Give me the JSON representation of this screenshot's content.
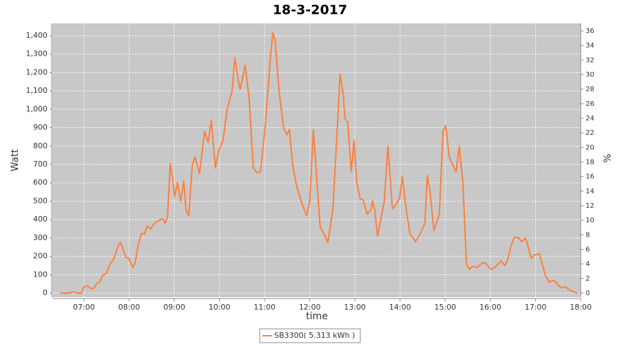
{
  "chart_data": {
    "type": "line",
    "title": "18-3-2017",
    "x_label": "time",
    "y_label": "Watt",
    "y2_label": "%",
    "x": [
      6.48,
      6.66,
      6.76,
      6.86,
      6.94,
      7.0,
      7.08,
      7.17,
      7.23,
      7.29,
      7.35,
      7.41,
      7.5,
      7.58,
      7.67,
      7.76,
      7.81,
      7.85,
      7.93,
      7.99,
      8.08,
      8.13,
      8.19,
      8.27,
      8.34,
      8.4,
      8.48,
      8.56,
      8.65,
      8.74,
      8.8,
      8.85,
      8.91,
      8.95,
      9.01,
      9.07,
      9.14,
      9.21,
      9.26,
      9.32,
      9.4,
      9.46,
      9.56,
      9.67,
      9.75,
      9.82,
      9.91,
      9.99,
      10.08,
      10.17,
      10.28,
      10.34,
      10.42,
      10.46,
      10.57,
      10.66,
      10.75,
      10.83,
      10.91,
      11.01,
      11.13,
      11.18,
      11.23,
      11.32,
      11.42,
      11.49,
      11.55,
      11.62,
      11.7,
      11.81,
      11.93,
      12.0,
      12.08,
      12.16,
      12.23,
      12.34,
      12.4,
      12.51,
      12.61,
      12.67,
      12.74,
      12.78,
      12.84,
      12.92,
      12.98,
      13.04,
      13.12,
      13.18,
      13.27,
      13.35,
      13.39,
      13.44,
      13.5,
      13.58,
      13.65,
      13.73,
      13.83,
      13.91,
      13.99,
      14.05,
      14.11,
      14.22,
      14.29,
      14.34,
      14.44,
      14.55,
      14.6,
      14.66,
      14.75,
      14.87,
      14.95,
      15.01,
      15.09,
      15.18,
      15.24,
      15.31,
      15.39,
      15.47,
      15.53,
      15.6,
      15.71,
      15.82,
      15.89,
      15.97,
      16.03,
      16.12,
      16.23,
      16.32,
      16.38,
      16.46,
      16.53,
      16.63,
      16.69,
      16.78,
      16.84,
      16.9,
      16.96,
      17.01,
      17.08,
      17.16,
      17.21,
      17.3,
      17.39,
      17.47,
      17.51,
      17.57,
      17.66,
      17.74,
      17.79,
      17.85,
      17.92
    ],
    "series": [
      {
        "name": "SB3300( 5.313 kWh )",
        "color": "#ff7f3a",
        "values": [
          0,
          0,
          8,
          0,
          0,
          35,
          40,
          22,
          30,
          55,
          60,
          95,
          110,
          160,
          190,
          260,
          275,
          250,
          195,
          190,
          140,
          160,
          250,
          325,
          320,
          365,
          350,
          380,
          395,
          405,
          380,
          420,
          705,
          640,
          525,
          600,
          500,
          610,
          450,
          420,
          700,
          740,
          650,
          880,
          820,
          940,
          680,
          780,
          830,
          1000,
          1100,
          1280,
          1150,
          1110,
          1240,
          1050,
          680,
          655,
          660,
          900,
          1280,
          1415,
          1380,
          1100,
          900,
          860,
          890,
          700,
          590,
          500,
          420,
          500,
          890,
          600,
          360,
          310,
          275,
          450,
          900,
          1190,
          1080,
          950,
          930,
          660,
          830,
          600,
          510,
          510,
          430,
          450,
          500,
          450,
          310,
          410,
          500,
          800,
          460,
          480,
          520,
          635,
          500,
          320,
          300,
          280,
          320,
          380,
          640,
          560,
          340,
          430,
          880,
          910,
          740,
          690,
          660,
          800,
          600,
          160,
          130,
          145,
          140,
          165,
          165,
          140,
          130,
          145,
          175,
          150,
          180,
          260,
          305,
          300,
          280,
          300,
          250,
          190,
          205,
          210,
          215,
          150,
          100,
          60,
          70,
          55,
          40,
          30,
          35,
          20,
          12,
          8,
          0
        ]
      }
    ],
    "xlim": [
      6.3,
      18
    ],
    "xticks": [
      {
        "value": 7,
        "label": "07:00"
      },
      {
        "value": 8,
        "label": "08:00"
      },
      {
        "value": 9,
        "label": "09:00"
      },
      {
        "value": 10,
        "label": "10:00"
      },
      {
        "value": 11,
        "label": "11:00"
      },
      {
        "value": 12,
        "label": "12:00"
      },
      {
        "value": 13,
        "label": "13:00"
      },
      {
        "value": 14,
        "label": "14:00"
      },
      {
        "value": 15,
        "label": "15:00"
      },
      {
        "value": 16,
        "label": "16:00"
      },
      {
        "value": 17,
        "label": "17:00"
      },
      {
        "value": 18,
        "label": "18:00"
      }
    ],
    "ylim": [
      -22,
      1467
    ],
    "yticks": [
      0,
      100,
      200,
      300,
      400,
      500,
      600,
      700,
      800,
      900,
      {
        "value": 1000,
        "label": "1,000"
      },
      {
        "value": 1100,
        "label": "1,100"
      },
      {
        "value": 1200,
        "label": "1,200"
      },
      {
        "value": 1300,
        "label": "1,300"
      },
      {
        "value": 1400,
        "label": "1,400"
      }
    ],
    "y2lim": [
      -0.57,
      37.04
    ],
    "y2ticks": [
      0,
      2,
      4,
      6,
      8,
      10,
      12,
      14,
      16,
      18,
      20,
      22,
      24,
      26,
      28,
      30,
      32,
      34,
      36
    ],
    "grid": true,
    "legend": "bottom"
  }
}
